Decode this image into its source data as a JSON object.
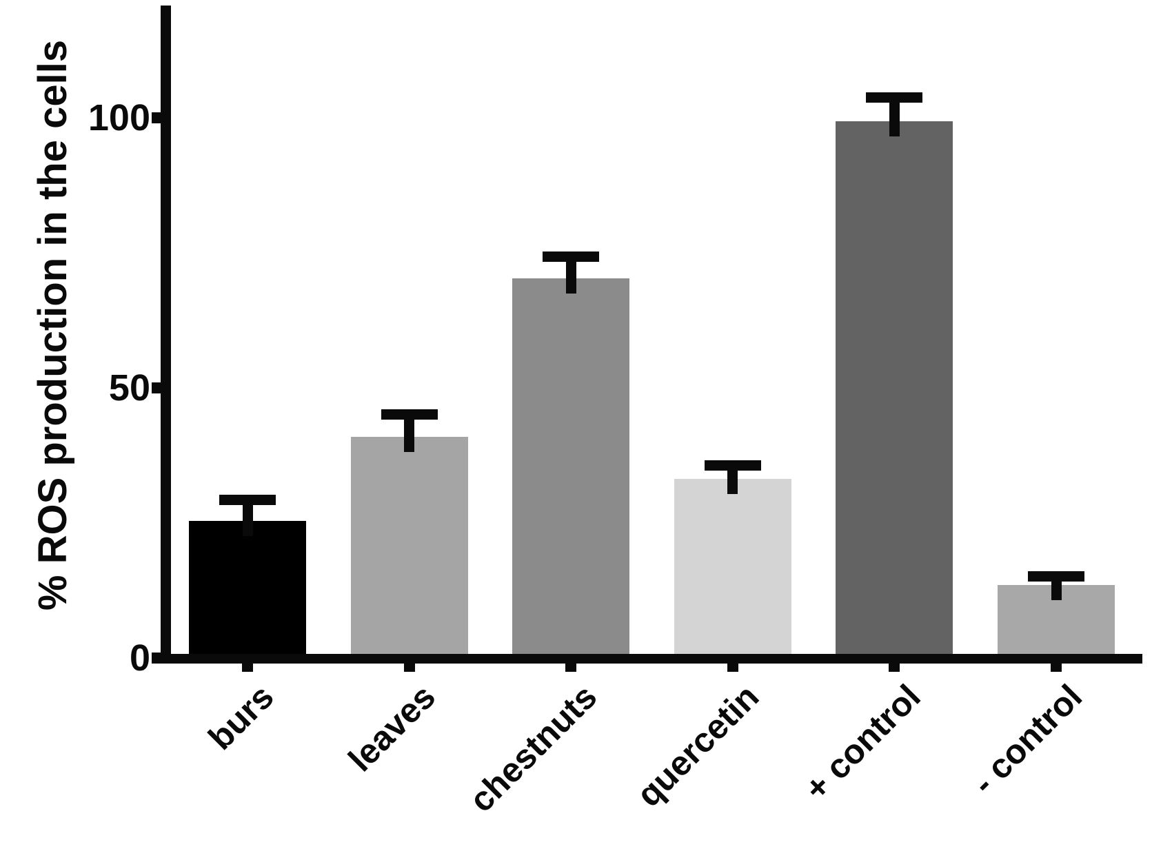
{
  "chart_data": {
    "type": "bar",
    "title": "",
    "xlabel": "",
    "ylabel": "% ROS production in the cells",
    "ylim": [
      0,
      120
    ],
    "yticks": [
      0,
      50,
      100
    ],
    "grid": false,
    "legend_position": "none",
    "categories": [
      "burs",
      "leaves",
      "chestnuts",
      "quercetin",
      "+ control",
      "- control"
    ],
    "values": [
      25.4,
      41.0,
      70.3,
      33.1,
      99.4,
      13.5
    ],
    "errors_plus": [
      4.8,
      5.1,
      4.9,
      3.5,
      5.3,
      2.6
    ],
    "error_style": "upper T-caps only",
    "bar_colors": [
      "#000000",
      "#a5a5a5",
      "#8b8b8b",
      "#d4d4d4",
      "#636363",
      "#a8a8a8"
    ],
    "axis_color": "#0a0a0a",
    "background_color": "#ffffff"
  }
}
